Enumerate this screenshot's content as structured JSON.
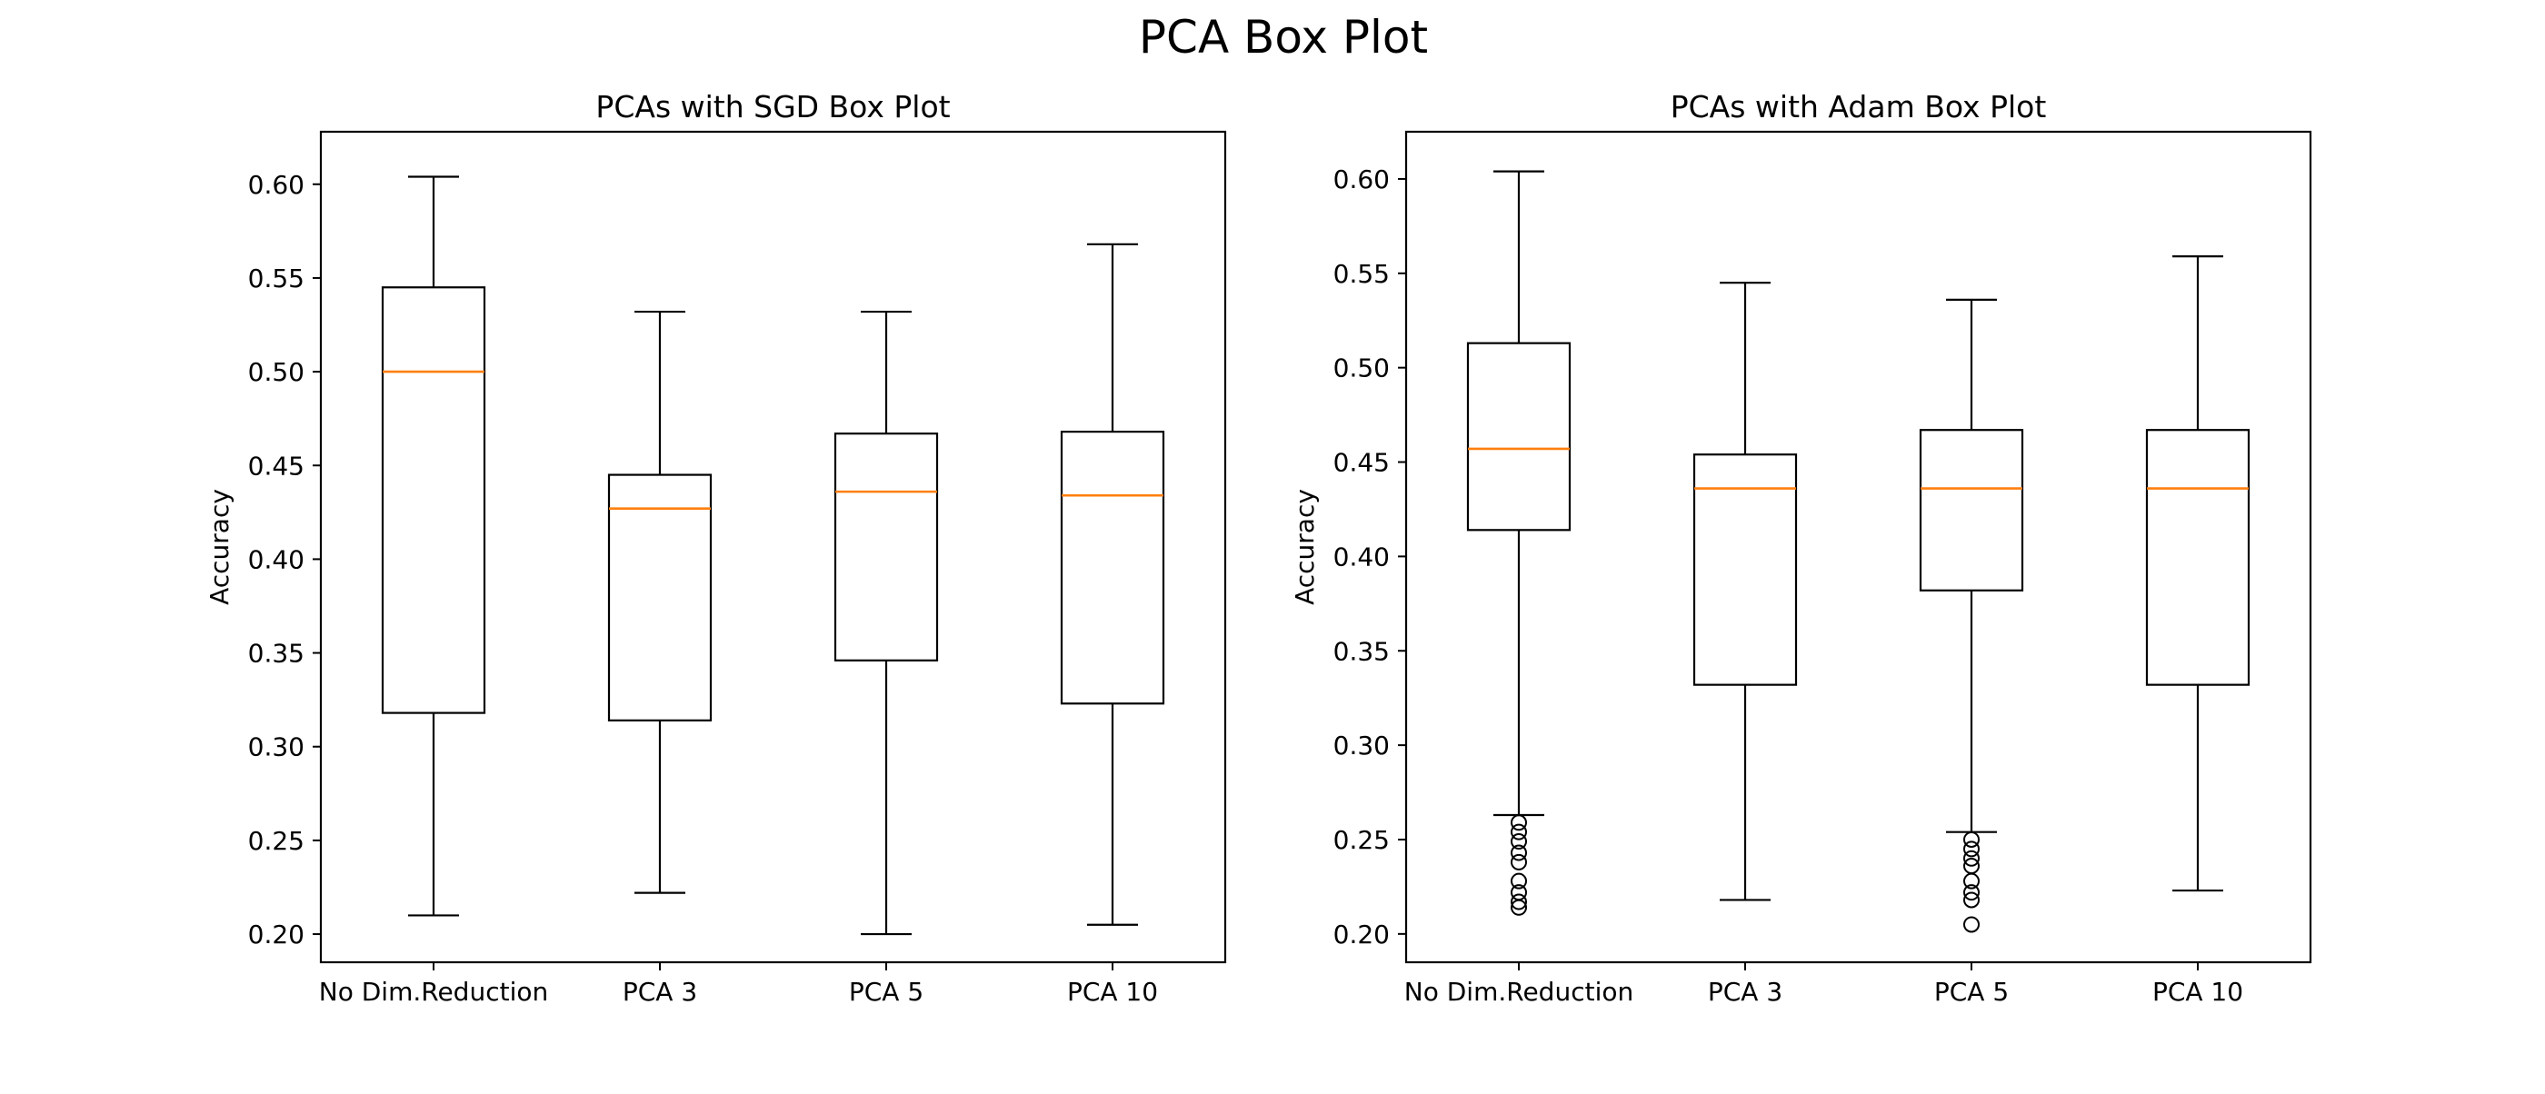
{
  "figure": {
    "title": "PCA Box Plot"
  },
  "chart_data": [
    {
      "type": "boxplot",
      "title": "PCAs with SGD Box Plot",
      "xlabel": "",
      "ylabel": "Accuracy",
      "ylim": [
        0.185,
        0.628
      ],
      "yticks": [
        "0.20",
        "0.25",
        "0.30",
        "0.35",
        "0.40",
        "0.45",
        "0.50",
        "0.55",
        "0.60"
      ],
      "grid": false,
      "categories": [
        "No Dim.Reduction",
        "PCA 3",
        "PCA 5",
        "PCA 10"
      ],
      "boxes": [
        {
          "label": "No Dim.Reduction",
          "whisker_low": 0.21,
          "q1": 0.318,
          "median": 0.5,
          "q3": 0.545,
          "whisker_high": 0.604,
          "outliers": []
        },
        {
          "label": "PCA 3",
          "whisker_low": 0.222,
          "q1": 0.314,
          "median": 0.427,
          "q3": 0.445,
          "whisker_high": 0.532,
          "outliers": []
        },
        {
          "label": "PCA 5",
          "whisker_low": 0.2,
          "q1": 0.346,
          "median": 0.436,
          "q3": 0.467,
          "whisker_high": 0.532,
          "outliers": []
        },
        {
          "label": "PCA 10",
          "whisker_low": 0.205,
          "q1": 0.323,
          "median": 0.434,
          "q3": 0.468,
          "whisker_high": 0.568,
          "outliers": []
        }
      ]
    },
    {
      "type": "boxplot",
      "title": "PCAs with Adam Box Plot",
      "xlabel": "",
      "ylabel": "Accuracy",
      "ylim": [
        0.185,
        0.625
      ],
      "yticks": [
        "0.20",
        "0.25",
        "0.30",
        "0.35",
        "0.40",
        "0.45",
        "0.50",
        "0.55",
        "0.60"
      ],
      "grid": false,
      "categories": [
        "No Dim.Reduction",
        "PCA 3",
        "PCA 5",
        "PCA 10"
      ],
      "boxes": [
        {
          "label": "No Dim.Reduction",
          "whisker_low": 0.263,
          "q1": 0.414,
          "median": 0.457,
          "q3": 0.513,
          "whisker_high": 0.604,
          "outliers": [
            0.259,
            0.254,
            0.249,
            0.243,
            0.238,
            0.228,
            0.222,
            0.217,
            0.214
          ]
        },
        {
          "label": "PCA 3",
          "whisker_low": 0.218,
          "q1": 0.332,
          "median": 0.436,
          "q3": 0.454,
          "whisker_high": 0.545,
          "outliers": []
        },
        {
          "label": "PCA 5",
          "whisker_low": 0.254,
          "q1": 0.382,
          "median": 0.436,
          "q3": 0.467,
          "whisker_high": 0.536,
          "outliers": [
            0.25,
            0.245,
            0.24,
            0.236,
            0.228,
            0.222,
            0.218,
            0.205
          ]
        },
        {
          "label": "PCA 10",
          "whisker_low": 0.223,
          "q1": 0.332,
          "median": 0.436,
          "q3": 0.467,
          "whisker_high": 0.559,
          "outliers": []
        }
      ]
    }
  ],
  "colors": {
    "box": "#000000",
    "median": "#ff7f0e",
    "background": "#ffffff"
  }
}
